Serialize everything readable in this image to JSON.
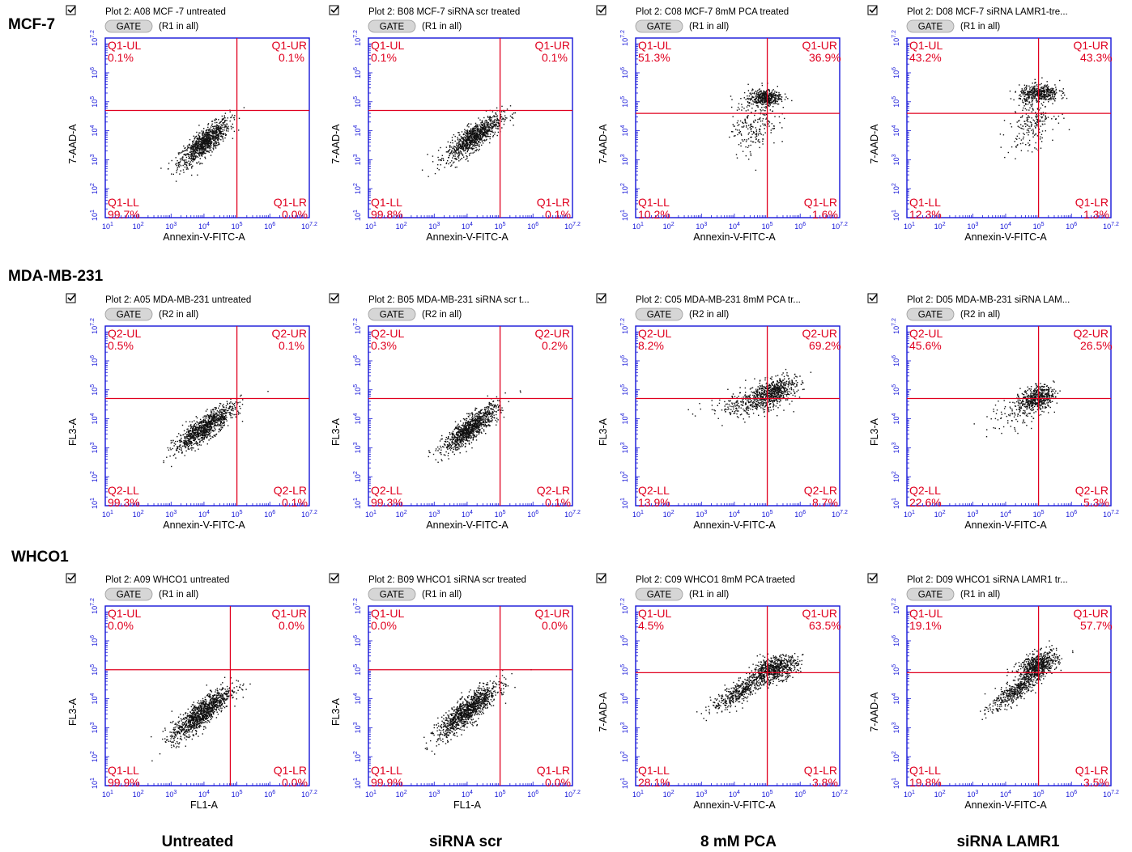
{
  "figure": {
    "rows": [
      "MCF-7",
      "MDA-MB-231",
      "WHCO1"
    ],
    "columns": [
      "Untreated",
      "siRNA scr",
      "8 mM PCA",
      "siRNA LAMR1"
    ]
  },
  "colors": {
    "frame": "#1515d8",
    "gate_line": "#e0001f",
    "quadrant_text": "#e0001f",
    "points": "#111111",
    "gate_button": "#d6d6d6"
  },
  "icons": {
    "checkbox": "checkbox-icon"
  },
  "chart_data": [
    {
      "type": "scatter",
      "title": "Plot 2: A08 MCF -7 untreated",
      "gate": "(R1 in all)",
      "gate_label": "GATE",
      "xlabel": "Annexin-V-FITC-A",
      "ylabel": "7-AAD-A",
      "xlim": [
        1,
        7.2
      ],
      "ylim": [
        1,
        7.2
      ],
      "scale": "log10",
      "x_ticks": [
        "10^1",
        "10^2",
        "10^3",
        "10^4",
        "10^5",
        "10^6",
        "10^7.2"
      ],
      "y_ticks": [
        "10^1",
        "10^2",
        "10^3",
        "10^4",
        "10^5",
        "10^6",
        "10^7.2"
      ],
      "gate_x": 5.0,
      "gate_y": 4.7,
      "quadrants": {
        "ul": {
          "name": "Q1-UL",
          "pct": "0.1%"
        },
        "ur": {
          "name": "Q1-UR",
          "pct": "0.1%"
        },
        "ll": {
          "name": "Q1-LL",
          "pct": "99.7%"
        },
        "lr": {
          "name": "Q1-LR",
          "pct": "0.0%"
        }
      },
      "clusters": [
        {
          "cx": 4.0,
          "cy": 3.6,
          "sx": 0.38,
          "sy": 0.4,
          "rho": 0.82,
          "n": 950
        }
      ]
    },
    {
      "type": "scatter",
      "title": "Plot 2: B08 MCF-7 siRNA scr treated",
      "gate": "(R1 in all)",
      "gate_label": "GATE",
      "xlabel": "Annexin-V-FITC-A",
      "ylabel": "7-AAD-A",
      "xlim": [
        1,
        7.2
      ],
      "ylim": [
        1,
        7.2
      ],
      "scale": "log10",
      "x_ticks": [
        "10^1",
        "10^2",
        "10^3",
        "10^4",
        "10^5",
        "10^6",
        "10^7.2"
      ],
      "y_ticks": [
        "10^1",
        "10^2",
        "10^3",
        "10^4",
        "10^5",
        "10^6",
        "10^7.2"
      ],
      "gate_x": 5.0,
      "gate_y": 4.7,
      "quadrants": {
        "ul": {
          "name": "Q1-UL",
          "pct": "0.1%"
        },
        "ur": {
          "name": "Q1-UR",
          "pct": "0.1%"
        },
        "ll": {
          "name": "Q1-LL",
          "pct": "99.8%"
        },
        "lr": {
          "name": "Q1-LR",
          "pct": "0.1%"
        }
      },
      "clusters": [
        {
          "cx": 4.2,
          "cy": 3.8,
          "sx": 0.42,
          "sy": 0.38,
          "rho": 0.82,
          "n": 950
        }
      ]
    },
    {
      "type": "scatter",
      "title": "Plot 2: C08 MCF-7 8mM PCA treated",
      "gate": "(R1 in all)",
      "gate_label": "GATE",
      "xlabel": "Annexin-V-FITC-A",
      "ylabel": "7-AAD-A",
      "xlim": [
        1,
        7.2
      ],
      "ylim": [
        1,
        7.2
      ],
      "scale": "log10",
      "x_ticks": [
        "10^1",
        "10^2",
        "10^3",
        "10^4",
        "10^5",
        "10^6",
        "10^7.2"
      ],
      "y_ticks": [
        "10^1",
        "10^2",
        "10^3",
        "10^4",
        "10^5",
        "10^6",
        "10^7.2"
      ],
      "gate_x": 5.0,
      "gate_y": 4.6,
      "quadrants": {
        "ul": {
          "name": "Q1-UL",
          "pct": "51.3%"
        },
        "ur": {
          "name": "Q1-UR",
          "pct": "36.9%"
        },
        "ll": {
          "name": "Q1-LL",
          "pct": "10.2%"
        },
        "lr": {
          "name": "Q1-LR",
          "pct": "1.6%"
        }
      },
      "clusters": [
        {
          "cx": 4.9,
          "cy": 5.15,
          "sx": 0.25,
          "sy": 0.14,
          "rho": 0.1,
          "n": 420
        },
        {
          "cx": 4.6,
          "cy": 4.3,
          "sx": 0.35,
          "sy": 0.55,
          "rho": 0.2,
          "n": 220
        }
      ]
    },
    {
      "type": "scatter",
      "title": "Plot 2: D08 MCF-7 siRNA LAMR1-tre...",
      "gate": "(R1 in all)",
      "gate_label": "GATE",
      "xlabel": "Annexin-V-FITC-A",
      "ylabel": "7-AAD-A",
      "xlim": [
        1,
        7.2
      ],
      "ylim": [
        1,
        7.2
      ],
      "scale": "log10",
      "x_ticks": [
        "10^1",
        "10^2",
        "10^3",
        "10^4",
        "10^5",
        "10^6",
        "10^7.2"
      ],
      "y_ticks": [
        "10^1",
        "10^2",
        "10^3",
        "10^4",
        "10^5",
        "10^6",
        "10^7.2"
      ],
      "gate_x": 5.0,
      "gate_y": 4.6,
      "quadrants": {
        "ul": {
          "name": "Q1-UL",
          "pct": "43.2%"
        },
        "ur": {
          "name": "Q1-UR",
          "pct": "43.3%"
        },
        "ll": {
          "name": "Q1-LL",
          "pct": "12.3%"
        },
        "lr": {
          "name": "Q1-LR",
          "pct": "1.3%"
        }
      },
      "clusters": [
        {
          "cx": 5.0,
          "cy": 5.3,
          "sx": 0.3,
          "sy": 0.15,
          "rho": 0.1,
          "n": 400
        },
        {
          "cx": 4.8,
          "cy": 4.4,
          "sx": 0.35,
          "sy": 0.5,
          "rho": 0.3,
          "n": 230
        }
      ]
    },
    {
      "type": "scatter",
      "title": "Plot 2: A05 MDA-MB-231 untreated",
      "gate": "(R2 in all)",
      "gate_label": "GATE",
      "xlabel": "Annexin-V-FITC-A",
      "ylabel": "FL3-A",
      "xlim": [
        1,
        7.2
      ],
      "ylim": [
        1,
        7.2
      ],
      "scale": "log10",
      "x_ticks": [
        "10^1",
        "10^2",
        "10^3",
        "10^4",
        "10^5",
        "10^6",
        "10^7.2"
      ],
      "y_ticks": [
        "10^1",
        "10^2",
        "10^3",
        "10^4",
        "10^5",
        "10^6",
        "10^7.2"
      ],
      "gate_x": 5.0,
      "gate_y": 4.7,
      "quadrants": {
        "ul": {
          "name": "Q2-UL",
          "pct": "0.5%"
        },
        "ur": {
          "name": "Q2-UR",
          "pct": "0.1%"
        },
        "ll": {
          "name": "Q2-LL",
          "pct": "99.3%"
        },
        "lr": {
          "name": "Q2-LR",
          "pct": "0.1%"
        }
      },
      "clusters": [
        {
          "cx": 4.0,
          "cy": 3.7,
          "sx": 0.45,
          "sy": 0.4,
          "rho": 0.85,
          "n": 1000
        }
      ]
    },
    {
      "type": "scatter",
      "title": "Plot 2: B05 MDA-MB-231 siRNA scr t...",
      "gate": "(R2 in all)",
      "gate_label": "GATE",
      "xlabel": "Annexin-V-FITC-A",
      "ylabel": "FL3-A",
      "xlim": [
        1,
        7.2
      ],
      "ylim": [
        1,
        7.2
      ],
      "scale": "log10",
      "x_ticks": [
        "10^1",
        "10^2",
        "10^3",
        "10^4",
        "10^5",
        "10^6",
        "10^7.2"
      ],
      "y_ticks": [
        "10^1",
        "10^2",
        "10^3",
        "10^4",
        "10^5",
        "10^6",
        "10^7.2"
      ],
      "gate_x": 5.0,
      "gate_y": 4.7,
      "quadrants": {
        "ul": {
          "name": "Q2-UL",
          "pct": "0.3%"
        },
        "ur": {
          "name": "Q2-UR",
          "pct": "0.2%"
        },
        "ll": {
          "name": "Q2-LL",
          "pct": "99.3%"
        },
        "lr": {
          "name": "Q2-LR",
          "pct": "0.1%"
        }
      },
      "clusters": [
        {
          "cx": 4.1,
          "cy": 3.7,
          "sx": 0.42,
          "sy": 0.4,
          "rho": 0.85,
          "n": 1000
        }
      ]
    },
    {
      "type": "scatter",
      "title": "Plot 2: C05 MDA-MB-231 8mM PCA tr...",
      "gate": "(R2 in all)",
      "gate_label": "GATE",
      "xlabel": "Annexin-V-FITC-A",
      "ylabel": "FL3-A",
      "xlim": [
        1,
        7.2
      ],
      "ylim": [
        1,
        7.2
      ],
      "scale": "log10",
      "x_ticks": [
        "10^1",
        "10^2",
        "10^3",
        "10^4",
        "10^5",
        "10^6",
        "10^7.2"
      ],
      "y_ticks": [
        "10^1",
        "10^2",
        "10^3",
        "10^4",
        "10^5",
        "10^6",
        "10^7.2"
      ],
      "gate_x": 5.0,
      "gate_y": 4.7,
      "quadrants": {
        "ul": {
          "name": "Q2-UL",
          "pct": "8.2%"
        },
        "ur": {
          "name": "Q2-UR",
          "pct": "69.2%"
        },
        "ll": {
          "name": "Q2-LL",
          "pct": "13.9%"
        },
        "lr": {
          "name": "Q2-LR",
          "pct": "8.7%"
        }
      },
      "clusters": [
        {
          "cx": 5.15,
          "cy": 4.95,
          "sx": 0.35,
          "sy": 0.25,
          "rho": 0.5,
          "n": 600
        },
        {
          "cx": 4.4,
          "cy": 4.55,
          "sx": 0.6,
          "sy": 0.25,
          "rho": 0.4,
          "n": 260
        }
      ]
    },
    {
      "type": "scatter",
      "title": "Plot 2: D05 MDA-MB-231 siRNA LAM...",
      "gate": "(R2 in all)",
      "gate_label": "GATE",
      "xlabel": "Annexin-V-FITC-A",
      "ylabel": "FL3-A",
      "xlim": [
        1,
        7.2
      ],
      "ylim": [
        1,
        7.2
      ],
      "scale": "log10",
      "x_ticks": [
        "10^1",
        "10^2",
        "10^3",
        "10^4",
        "10^5",
        "10^6",
        "10^7.2"
      ],
      "y_ticks": [
        "10^1",
        "10^2",
        "10^3",
        "10^4",
        "10^5",
        "10^6",
        "10^7.2"
      ],
      "gate_x": 5.0,
      "gate_y": 4.7,
      "quadrants": {
        "ul": {
          "name": "Q2-UL",
          "pct": "45.6%"
        },
        "ur": {
          "name": "Q2-UR",
          "pct": "26.5%"
        },
        "ll": {
          "name": "Q2-LL",
          "pct": "22.6%"
        },
        "lr": {
          "name": "Q2-LR",
          "pct": "5.3%"
        }
      },
      "clusters": [
        {
          "cx": 4.95,
          "cy": 4.75,
          "sx": 0.25,
          "sy": 0.2,
          "rho": 0.3,
          "n": 450
        },
        {
          "cx": 4.5,
          "cy": 4.3,
          "sx": 0.5,
          "sy": 0.35,
          "rho": 0.5,
          "n": 150
        }
      ]
    },
    {
      "type": "scatter",
      "title": "Plot 2: A09 WHCO1 untreated",
      "gate": "(R1 in all)",
      "gate_label": "GATE",
      "xlabel": "FL1-A",
      "ylabel": "FL3-A",
      "xlim": [
        1,
        7.2
      ],
      "ylim": [
        1,
        7.2
      ],
      "scale": "log10",
      "x_ticks": [
        "10^1",
        "10^2",
        "10^3",
        "10^4",
        "10^5",
        "10^6",
        "10^7.2"
      ],
      "y_ticks": [
        "10^1",
        "10^2",
        "10^3",
        "10^4",
        "10^5",
        "10^6",
        "10^7.2"
      ],
      "gate_x": 4.8,
      "gate_y": 5.0,
      "quadrants": {
        "ul": {
          "name": "Q1-UL",
          "pct": "0.0%"
        },
        "ur": {
          "name": "Q1-UR",
          "pct": "0.0%"
        },
        "ll": {
          "name": "Q1-LL",
          "pct": "99.9%"
        },
        "lr": {
          "name": "Q1-LR",
          "pct": "0.0%"
        }
      },
      "clusters": [
        {
          "cx": 3.9,
          "cy": 3.5,
          "sx": 0.45,
          "sy": 0.45,
          "rho": 0.85,
          "n": 1100
        }
      ]
    },
    {
      "type": "scatter",
      "title": "Plot 2: B09 WHCO1 siRNA scr treated",
      "gate": "(R1 in all)",
      "gate_label": "GATE",
      "xlabel": "FL1-A",
      "ylabel": "FL3-A",
      "xlim": [
        1,
        7.2
      ],
      "ylim": [
        1,
        7.2
      ],
      "scale": "log10",
      "x_ticks": [
        "10^1",
        "10^2",
        "10^3",
        "10^4",
        "10^5",
        "10^6",
        "10^7.2"
      ],
      "y_ticks": [
        "10^1",
        "10^2",
        "10^3",
        "10^4",
        "10^5",
        "10^6",
        "10^7.2"
      ],
      "gate_x": 5.0,
      "gate_y": 5.0,
      "quadrants": {
        "ul": {
          "name": "Q1-UL",
          "pct": "0.0%"
        },
        "ur": {
          "name": "Q1-UR",
          "pct": "0.0%"
        },
        "ll": {
          "name": "Q1-LL",
          "pct": "99.9%"
        },
        "lr": {
          "name": "Q1-LR",
          "pct": "0.0%"
        }
      },
      "clusters": [
        {
          "cx": 4.0,
          "cy": 3.6,
          "sx": 0.45,
          "sy": 0.45,
          "rho": 0.85,
          "n": 1100
        }
      ]
    },
    {
      "type": "scatter",
      "title": "Plot 2: C09 WHCO1 8mM PCA traeted",
      "gate": "(R1 in all)",
      "gate_label": "GATE",
      "xlabel": "Annexin-V-FITC-A",
      "ylabel": "7-AAD-A",
      "xlim": [
        1,
        7.2
      ],
      "ylim": [
        1,
        7.2
      ],
      "scale": "log10",
      "x_ticks": [
        "10^1",
        "10^2",
        "10^3",
        "10^4",
        "10^5",
        "10^6",
        "10^7.2"
      ],
      "y_ticks": [
        "10^1",
        "10^2",
        "10^3",
        "10^4",
        "10^5",
        "10^6",
        "10^7.2"
      ],
      "gate_x": 5.0,
      "gate_y": 4.9,
      "quadrants": {
        "ul": {
          "name": "Q1-UL",
          "pct": "4.5%"
        },
        "ur": {
          "name": "Q1-UR",
          "pct": "63.5%"
        },
        "ll": {
          "name": "Q1-LL",
          "pct": "28.1%"
        },
        "lr": {
          "name": "Q1-LR",
          "pct": "3.8%"
        }
      },
      "clusters": [
        {
          "cx": 5.2,
          "cy": 5.05,
          "sx": 0.35,
          "sy": 0.22,
          "rho": 0.4,
          "n": 650
        },
        {
          "cx": 4.2,
          "cy": 4.3,
          "sx": 0.45,
          "sy": 0.35,
          "rho": 0.85,
          "n": 450
        }
      ]
    },
    {
      "type": "scatter",
      "title": "Plot 2: D09 WHCO1 siRNA LAMR1 tr...",
      "gate": "(R1 in all)",
      "gate_label": "GATE",
      "xlabel": "Annexin-V-FITC-A",
      "ylabel": "7-AAD-A",
      "xlim": [
        1,
        7.2
      ],
      "ylim": [
        1,
        7.2
      ],
      "scale": "log10",
      "x_ticks": [
        "10^1",
        "10^2",
        "10^3",
        "10^4",
        "10^5",
        "10^6",
        "10^7.2"
      ],
      "y_ticks": [
        "10^1",
        "10^2",
        "10^3",
        "10^4",
        "10^5",
        "10^6",
        "10^7.2"
      ],
      "gate_x": 5.0,
      "gate_y": 4.9,
      "quadrants": {
        "ul": {
          "name": "Q1-UL",
          "pct": "19.1%"
        },
        "ur": {
          "name": "Q1-UR",
          "pct": "57.7%"
        },
        "ll": {
          "name": "Q1-LL",
          "pct": "19.8%"
        },
        "lr": {
          "name": "Q1-LR",
          "pct": "3.5%"
        }
      },
      "clusters": [
        {
          "cx": 4.95,
          "cy": 5.15,
          "sx": 0.3,
          "sy": 0.25,
          "rho": 0.5,
          "n": 650
        },
        {
          "cx": 4.3,
          "cy": 4.3,
          "sx": 0.4,
          "sy": 0.35,
          "rho": 0.85,
          "n": 450
        }
      ]
    }
  ]
}
